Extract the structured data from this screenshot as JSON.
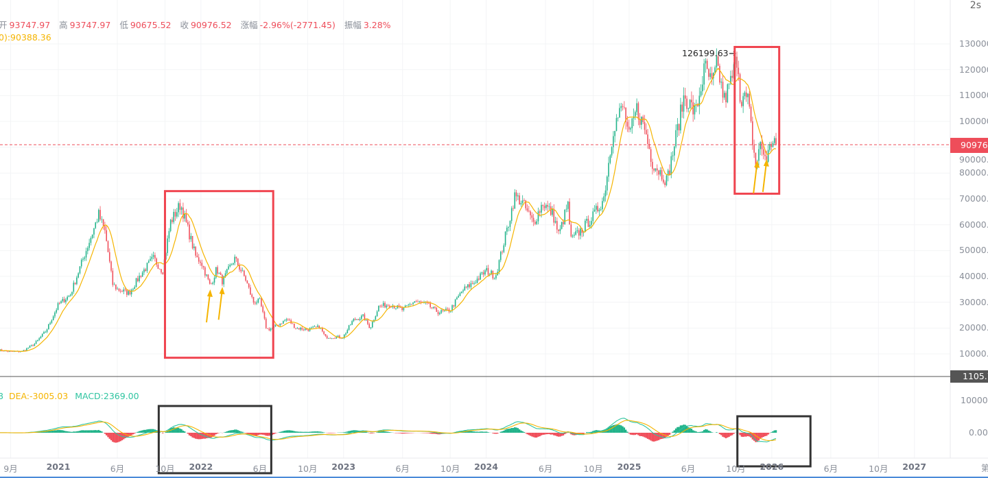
{
  "header": {
    "open_label": "开",
    "open": "93747.97",
    "high_label": "高",
    "high": "93747.97",
    "low_label": "低",
    "low": "90675.52",
    "close_label": "收",
    "close": "90976.52",
    "change_label": "涨幅",
    "change": "-2.96%(-2771.45)",
    "amplitude_label": "振幅",
    "amplitude": "3.28%"
  },
  "ma_legend": "0):90388.36",
  "macd_legend": {
    "dif": "8",
    "dea": "DEA:-3005.03",
    "macd": "MACD:2369.00"
  },
  "refresh_timer": "2s",
  "current_price_tag": "90976.",
  "crosshair_tag": "1105.7",
  "peak_label": "126199.63",
  "corner_label": "第",
  "colors": {
    "up": "#22b38a",
    "down": "#f0505c",
    "ma": "#f5b400",
    "dif": "#2ec4a0",
    "dea": "#f5b400",
    "annotation_red": "#f0444f",
    "annotation_black": "#333333",
    "arrow": "#f5b400"
  },
  "chart_data": {
    "type": "candlestick",
    "price_axis": {
      "ticks": [
        "130000.",
        "120000.",
        "110000.",
        "100000.",
        "90000.0",
        "80000.0",
        "70000.0",
        "60000.0",
        "50000.0",
        "40000.0",
        "30000.0",
        "20000.0",
        "10000.0"
      ],
      "range": [
        10000,
        130000
      ]
    },
    "macd_axis": {
      "ticks": [
        "10000.",
        "0.00"
      ]
    },
    "x_ticks": [
      {
        "label": "9月",
        "date": "2020-09-01",
        "year": false
      },
      {
        "label": "2021",
        "date": "2021-01-01",
        "year": true
      },
      {
        "label": "6月",
        "date": "2021-06-01",
        "year": false
      },
      {
        "label": "10月",
        "date": "2021-10-01",
        "year": false
      },
      {
        "label": "2022",
        "date": "2022-01-01",
        "year": true
      },
      {
        "label": "6月",
        "date": "2022-06-01",
        "year": false
      },
      {
        "label": "10月",
        "date": "2022-10-01",
        "year": false
      },
      {
        "label": "2023",
        "date": "2023-01-01",
        "year": true
      },
      {
        "label": "6月",
        "date": "2023-06-01",
        "year": false
      },
      {
        "label": "10月",
        "date": "2023-10-01",
        "year": false
      },
      {
        "label": "2024",
        "date": "2024-01-01",
        "year": true
      },
      {
        "label": "6月",
        "date": "2024-06-01",
        "year": false
      },
      {
        "label": "10月",
        "date": "2024-10-01",
        "year": false
      },
      {
        "label": "2025",
        "date": "2025-01-01",
        "year": true
      },
      {
        "label": "6月",
        "date": "2025-06-01",
        "year": false
      },
      {
        "label": "10月",
        "date": "2025-10-01",
        "year": false
      },
      {
        "label": "2026",
        "date": "2026-01-01",
        "year": true
      },
      {
        "label": "6月",
        "date": "2026-06-01",
        "year": false
      },
      {
        "label": "10月",
        "date": "2026-10-01",
        "year": false
      },
      {
        "label": "2027",
        "date": "2027-01-01",
        "year": true
      }
    ],
    "current_price": 90976.52,
    "peak": {
      "date": "2025-10-06",
      "value": 126199.63
    },
    "price_series": [
      [
        "2020-08-01",
        11500
      ],
      [
        "2020-09-01",
        10800
      ],
      [
        "2020-10-01",
        11000
      ],
      [
        "2020-11-01",
        13800
      ],
      [
        "2020-12-01",
        19000
      ],
      [
        "2021-01-01",
        29000
      ],
      [
        "2021-02-01",
        33000
      ],
      [
        "2021-03-01",
        45000
      ],
      [
        "2021-04-01",
        58000
      ],
      [
        "2021-04-14",
        64000
      ],
      [
        "2021-05-01",
        57000
      ],
      [
        "2021-05-20",
        37000
      ],
      [
        "2021-06-01",
        35000
      ],
      [
        "2021-07-01",
        33500
      ],
      [
        "2021-08-01",
        41000
      ],
      [
        "2021-09-01",
        47000
      ],
      [
        "2021-09-25",
        42000
      ],
      [
        "2021-10-15",
        61000
      ],
      [
        "2021-11-10",
        68000
      ],
      [
        "2021-12-01",
        57000
      ],
      [
        "2021-12-20",
        47000
      ],
      [
        "2022-01-01",
        46000
      ],
      [
        "2022-01-25",
        36000
      ],
      [
        "2022-02-10",
        43000
      ],
      [
        "2022-02-25",
        38000
      ],
      [
        "2022-03-28",
        47000
      ],
      [
        "2022-04-25",
        39000
      ],
      [
        "2022-05-15",
        30000
      ],
      [
        "2022-06-01",
        30500
      ],
      [
        "2022-06-18",
        19500
      ],
      [
        "2022-07-01",
        19800
      ],
      [
        "2022-08-10",
        23500
      ],
      [
        "2022-09-01",
        20000
      ],
      [
        "2022-10-01",
        19400
      ],
      [
        "2022-11-01",
        20500
      ],
      [
        "2022-11-15",
        16500
      ],
      [
        "2022-12-31",
        16500
      ],
      [
        "2023-01-25",
        23000
      ],
      [
        "2023-02-20",
        24500
      ],
      [
        "2023-03-10",
        20000
      ],
      [
        "2023-04-01",
        28400
      ],
      [
        "2023-05-01",
        29200
      ],
      [
        "2023-06-01",
        27000
      ],
      [
        "2023-07-01",
        30400
      ],
      [
        "2023-08-01",
        29200
      ],
      [
        "2023-09-01",
        26000
      ],
      [
        "2023-10-01",
        27000
      ],
      [
        "2023-11-01",
        34500
      ],
      [
        "2023-12-01",
        37700
      ],
      [
        "2024-01-01",
        42200
      ],
      [
        "2024-01-25",
        40000
      ],
      [
        "2024-02-28",
        61000
      ],
      [
        "2024-03-14",
        71000
      ],
      [
        "2024-04-01",
        69000
      ],
      [
        "2024-05-01",
        60600
      ],
      [
        "2024-05-25",
        68500
      ],
      [
        "2024-06-20",
        64000
      ],
      [
        "2024-07-05",
        56000
      ],
      [
        "2024-07-28",
        68000
      ],
      [
        "2024-08-05",
        54000
      ],
      [
        "2024-09-01",
        58000
      ],
      [
        "2024-10-01",
        63300
      ],
      [
        "2024-10-28",
        70200
      ],
      [
        "2024-11-22",
        98000
      ],
      [
        "2024-12-17",
        106000
      ],
      [
        "2025-01-01",
        93400
      ],
      [
        "2025-01-20",
        105000
      ],
      [
        "2025-02-10",
        97000
      ],
      [
        "2025-03-01",
        84300
      ],
      [
        "2025-04-08",
        77000
      ],
      [
        "2025-05-01",
        94200
      ],
      [
        "2025-05-22",
        110000
      ],
      [
        "2025-06-20",
        103000
      ],
      [
        "2025-07-14",
        121000
      ],
      [
        "2025-08-01",
        114000
      ],
      [
        "2025-08-14",
        122000
      ],
      [
        "2025-09-01",
        108000
      ],
      [
        "2025-09-20",
        116000
      ],
      [
        "2025-10-06",
        126199.63
      ],
      [
        "2025-10-11",
        110000
      ],
      [
        "2025-11-01",
        108000
      ],
      [
        "2025-11-21",
        82000
      ],
      [
        "2025-12-01",
        91000
      ],
      [
        "2025-12-18",
        85500
      ],
      [
        "2026-01-05",
        93747.97
      ],
      [
        "2026-01-13",
        90976.52
      ]
    ]
  },
  "annotations": {
    "red_boxes": [
      {
        "from": "2021-10-01",
        "to": "2022-07-05",
        "top": 73000,
        "bottom": 8500
      },
      {
        "from": "2025-09-28",
        "to": "2026-01-20",
        "top": 128800,
        "bottom": 72000
      }
    ],
    "black_boxes": [
      {
        "from": "2021-09-15",
        "to": "2022-06-30"
      },
      {
        "from": "2025-10-05",
        "to": "2026-04-10"
      }
    ],
    "arrows": [
      {
        "date": "2022-01-24",
        "value": 36000
      },
      {
        "date": "2022-02-24",
        "value": 37000
      },
      {
        "date": "2025-11-24",
        "value": 86000
      },
      {
        "date": "2025-12-18",
        "value": 86500
      }
    ]
  }
}
